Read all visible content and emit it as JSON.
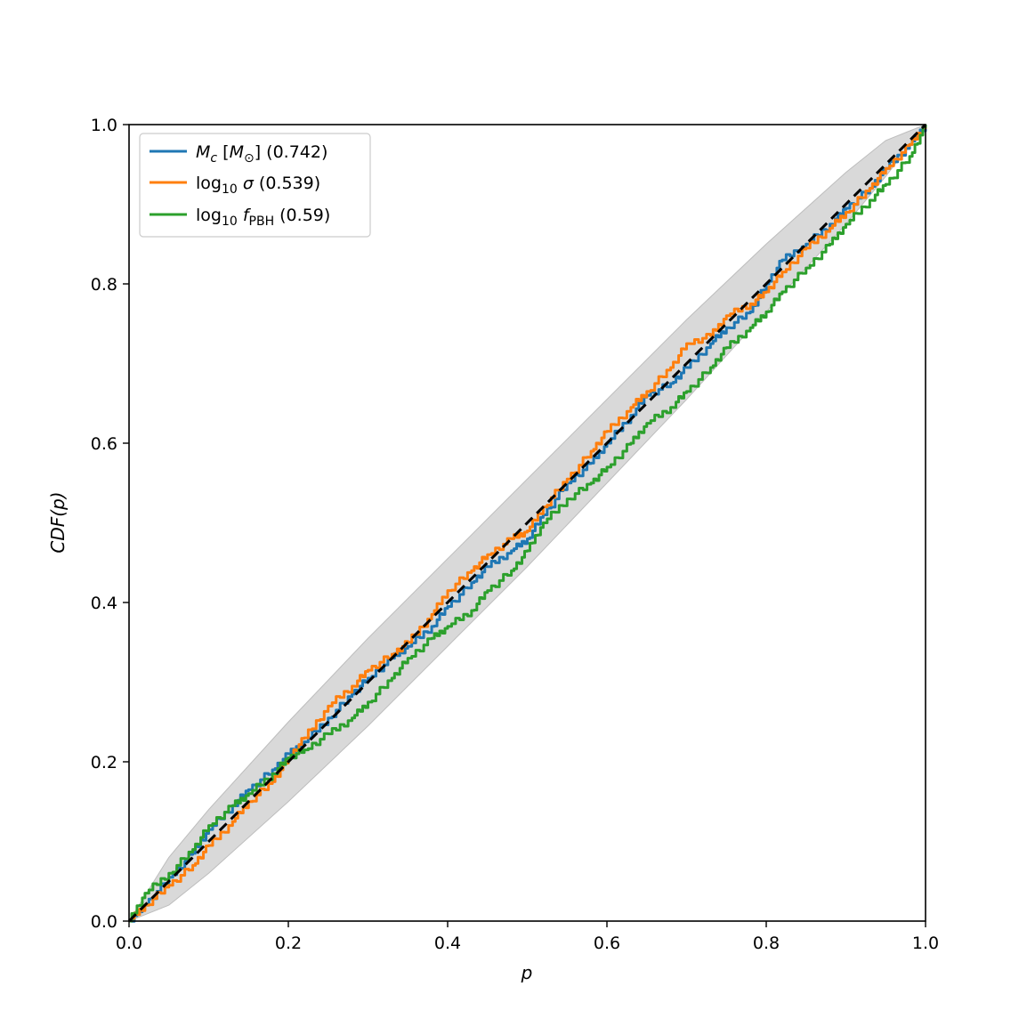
{
  "chart_data": {
    "type": "line",
    "xlabel": "p",
    "ylabel": "CDF(p)",
    "xlim": [
      0.0,
      1.0
    ],
    "ylim": [
      0.0,
      1.0
    ],
    "x_ticks": [
      "0.0",
      "0.2",
      "0.4",
      "0.6",
      "0.8",
      "1.0"
    ],
    "y_ticks": [
      "0.0",
      "0.2",
      "0.4",
      "0.6",
      "0.8",
      "1.0"
    ],
    "grid": false,
    "legend_position": "top-left",
    "confidence_band": {
      "color": "#d9d9d9",
      "x": [
        0.0,
        0.05,
        0.1,
        0.2,
        0.3,
        0.4,
        0.5,
        0.6,
        0.7,
        0.8,
        0.9,
        0.95,
        1.0
      ],
      "lower": [
        0.0,
        0.02,
        0.06,
        0.15,
        0.245,
        0.345,
        0.445,
        0.55,
        0.655,
        0.765,
        0.875,
        0.935,
        1.0
      ],
      "upper": [
        0.0,
        0.08,
        0.14,
        0.25,
        0.355,
        0.455,
        0.555,
        0.655,
        0.755,
        0.85,
        0.94,
        0.98,
        1.0
      ]
    },
    "reference_line": {
      "color": "#000000",
      "style": "dashed",
      "x": [
        0.0,
        1.0
      ],
      "y": [
        0.0,
        1.0
      ]
    },
    "series": [
      {
        "name": "M_c [M_⊙] (0.742)",
        "color": "#1f77b4",
        "x": [
          0.0,
          0.02,
          0.05,
          0.08,
          0.1,
          0.13,
          0.15,
          0.18,
          0.2,
          0.22,
          0.25,
          0.28,
          0.3,
          0.33,
          0.35,
          0.38,
          0.4,
          0.43,
          0.45,
          0.48,
          0.5,
          0.52,
          0.55,
          0.58,
          0.6,
          0.63,
          0.65,
          0.68,
          0.7,
          0.73,
          0.75,
          0.78,
          0.8,
          0.82,
          0.85,
          0.88,
          0.9,
          0.93,
          0.95,
          0.98,
          1.0
        ],
        "y": [
          0.0,
          0.02,
          0.055,
          0.085,
          0.115,
          0.145,
          0.165,
          0.19,
          0.21,
          0.225,
          0.255,
          0.285,
          0.305,
          0.33,
          0.345,
          0.37,
          0.395,
          0.425,
          0.445,
          0.465,
          0.48,
          0.51,
          0.55,
          0.575,
          0.6,
          0.635,
          0.66,
          0.675,
          0.695,
          0.725,
          0.745,
          0.765,
          0.8,
          0.83,
          0.85,
          0.875,
          0.895,
          0.92,
          0.945,
          0.975,
          1.0
        ]
      },
      {
        "name": "log₁₀ σ (0.539)",
        "color": "#ff7f0e",
        "x": [
          0.0,
          0.02,
          0.05,
          0.08,
          0.1,
          0.13,
          0.15,
          0.18,
          0.2,
          0.22,
          0.25,
          0.28,
          0.3,
          0.33,
          0.35,
          0.38,
          0.4,
          0.43,
          0.45,
          0.48,
          0.5,
          0.52,
          0.55,
          0.58,
          0.6,
          0.63,
          0.65,
          0.68,
          0.7,
          0.73,
          0.75,
          0.78,
          0.8,
          0.82,
          0.85,
          0.88,
          0.9,
          0.93,
          0.95,
          0.98,
          1.0
        ],
        "y": [
          0.0,
          0.02,
          0.045,
          0.07,
          0.095,
          0.125,
          0.15,
          0.175,
          0.205,
          0.23,
          0.27,
          0.295,
          0.315,
          0.335,
          0.35,
          0.385,
          0.415,
          0.44,
          0.46,
          0.48,
          0.49,
          0.52,
          0.555,
          0.59,
          0.615,
          0.645,
          0.665,
          0.695,
          0.725,
          0.735,
          0.76,
          0.775,
          0.79,
          0.815,
          0.845,
          0.87,
          0.89,
          0.92,
          0.945,
          0.975,
          1.0
        ]
      },
      {
        "name": "log₁₀ f_PBH (0.59)",
        "color": "#2ca02c",
        "x": [
          0.0,
          0.02,
          0.05,
          0.08,
          0.1,
          0.13,
          0.15,
          0.18,
          0.2,
          0.22,
          0.25,
          0.28,
          0.3,
          0.33,
          0.35,
          0.38,
          0.4,
          0.43,
          0.45,
          0.48,
          0.5,
          0.52,
          0.55,
          0.58,
          0.6,
          0.63,
          0.65,
          0.68,
          0.7,
          0.73,
          0.75,
          0.78,
          0.8,
          0.82,
          0.85,
          0.88,
          0.9,
          0.93,
          0.95,
          0.98,
          1.0
        ],
        "y": [
          0.0,
          0.035,
          0.06,
          0.09,
          0.12,
          0.145,
          0.16,
          0.185,
          0.205,
          0.215,
          0.235,
          0.255,
          0.275,
          0.305,
          0.33,
          0.355,
          0.37,
          0.39,
          0.415,
          0.44,
          0.465,
          0.5,
          0.53,
          0.55,
          0.57,
          0.6,
          0.625,
          0.645,
          0.665,
          0.695,
          0.72,
          0.745,
          0.765,
          0.79,
          0.82,
          0.85,
          0.875,
          0.905,
          0.925,
          0.96,
          1.0
        ]
      }
    ]
  }
}
